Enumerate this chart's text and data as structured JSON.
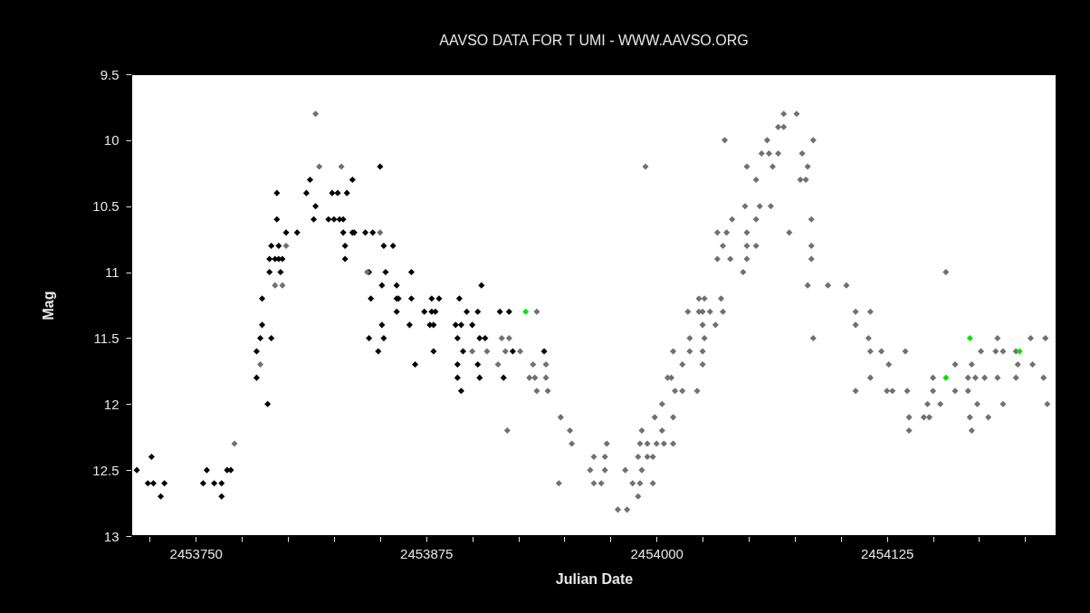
{
  "chart_data": {
    "type": "scatter",
    "title": "AAVSO DATA FOR T UMI - WWW.AAVSO.ORG",
    "xlabel": "Julian Date",
    "ylabel": "Mag",
    "xlim": [
      2453715,
      2454217
    ],
    "ylim": [
      13,
      9.5
    ],
    "xticks": [
      {
        "value": 2453725,
        "label": null
      },
      2453750,
      {
        "value": 2453775,
        "label": null
      },
      {
        "value": 2453800,
        "label": null
      },
      {
        "value": 2453825,
        "label": null
      },
      {
        "value": 2453850,
        "label": null
      },
      2453875,
      {
        "value": 2453900,
        "label": null
      },
      {
        "value": 2453925,
        "label": null
      },
      {
        "value": 2453950,
        "label": null
      },
      {
        "value": 2453975,
        "label": null
      },
      2454000,
      {
        "value": 2454025,
        "label": null
      },
      {
        "value": 2454050,
        "label": null
      },
      {
        "value": 2454075,
        "label": null
      },
      {
        "value": 2454100,
        "label": null
      },
      2454125,
      {
        "value": 2454150,
        "label": null
      },
      {
        "value": 2454175,
        "label": null
      },
      {
        "value": 2454200,
        "label": null
      }
    ],
    "yticks": [
      9.5,
      10,
      10.5,
      11,
      11.5,
      12,
      12.5,
      13
    ],
    "grid": false,
    "marker": "diamond",
    "series": [
      {
        "color": "#000000",
        "x": [
          2453718,
          2453726,
          2453724,
          2453727,
          2453733,
          2453731,
          2453754,
          2453756,
          2453760,
          2453764,
          2453764,
          2453767,
          2453769,
          2453783,
          2453783,
          2453785,
          2453786,
          2453786,
          2453789,
          2453791,
          2453790,
          2453796,
          2453790,
          2453793,
          2453795,
          2453797,
          2453791,
          2453795,
          2453799,
          2453805,
          2453794,
          2453794,
          2453810,
          2453812,
          2453815,
          2453814,
          2453822,
          2453825,
          2453828,
          2453830,
          2453824,
          2453827,
          2453832,
          2453830,
          2453835,
          2453831,
          2453831,
          2453835,
          2453850,
          2453836,
          2453842,
          2453846,
          2453852,
          2453857,
          2453844,
          2453853,
          2453867,
          2453851,
          2453859,
          2453905,
          2453845,
          2453859,
          2453860,
          2453867,
          2453878,
          2453882,
          2453893,
          2453859,
          2453874,
          2453878,
          2453880,
          2453897,
          2453903,
          2453915,
          2453920,
          2453851,
          2453866,
          2453877,
          2453879,
          2453891,
          2453894,
          2453900,
          2453844,
          2453852,
          2453892,
          2453904,
          2453907,
          2453849,
          2453879,
          2453895,
          2453922,
          2453939,
          2453869,
          2453892,
          2453903,
          2453892,
          2453904,
          2453917,
          2453894
        ],
        "values": [
          12.5,
          12.4,
          12.6,
          12.6,
          12.6,
          12.7,
          12.6,
          12.5,
          12.6,
          12.6,
          12.7,
          12.5,
          12.5,
          11.8,
          11.6,
          11.5,
          11.4,
          11.2,
          12.0,
          11.5,
          11.0,
          11.0,
          10.9,
          10.9,
          10.9,
          10.9,
          10.8,
          10.8,
          10.7,
          10.7,
          10.6,
          10.4,
          10.4,
          10.3,
          10.5,
          10.6,
          10.6,
          10.6,
          10.6,
          10.6,
          10.4,
          10.4,
          10.4,
          10.7,
          10.7,
          10.8,
          10.9,
          10.3,
          10.2,
          10.7,
          10.7,
          10.7,
          10.8,
          10.8,
          11.0,
          11.0,
          11.0,
          11.1,
          11.1,
          11.1,
          11.2,
          11.2,
          11.2,
          11.2,
          11.2,
          11.2,
          11.2,
          11.3,
          11.3,
          11.3,
          11.3,
          11.3,
          11.3,
          11.3,
          11.3,
          11.4,
          11.4,
          11.4,
          11.4,
          11.4,
          11.4,
          11.4,
          11.5,
          11.5,
          11.5,
          11.5,
          11.5,
          11.6,
          11.6,
          11.6,
          11.6,
          11.6,
          11.7,
          11.7,
          11.7,
          11.8,
          11.8,
          11.8,
          11.9
        ]
      },
      {
        "color": "#707070",
        "x": [
          2453771,
          2453785,
          2453793,
          2453797,
          2453799,
          2453815,
          2453817,
          2453829,
          2453850,
          2453843,
          2453935,
          2453916,
          2453920,
          2453900,
          2453908,
          2453918,
          2453926,
          2453914,
          2453933,
          2453940,
          2453931,
          2453934,
          2453940,
          2453935,
          2453941,
          2453948,
          2453953,
          2453919,
          2453954,
          2453947,
          2453973,
          2453966,
          2453972,
          2453964,
          2453972,
          2453983,
          2453992,
          2453966,
          2453970,
          2453987,
          2453991,
          2453998,
          2453990,
          2453979,
          2453984,
          2453990,
          2453995,
          2453998,
          2453992,
          2453991,
          2453995,
          2454000,
          2454004,
          2454009,
          2454003,
          2453999,
          2454009,
          2454003,
          2454006,
          2454008,
          2454010,
          2454014,
          2454022,
          2454014,
          2454025,
          2454009,
          2454018,
          2454025,
          2454018,
          2454026,
          2454025,
          2454032,
          2454017,
          2454023,
          2454025,
          2454029,
          2454036,
          2454023,
          2454026,
          2454035,
          2453994,
          2454047,
          2454033,
          2454040,
          2454049,
          2454036,
          2454049,
          2454054,
          2454033,
          2454038,
          2454049,
          2454041,
          2454054,
          2454048,
          2454056,
          2454062,
          2454049,
          2454054,
          2454037,
          2454060,
          2454057,
          2454061,
          2454066,
          2454063,
          2454069,
          2454076,
          2454066,
          2454069,
          2454072,
          2454079,
          2454082,
          2454078,
          2454081,
          2454085,
          2454084,
          2454084,
          2454084,
          2454082,
          2454085,
          2454093,
          2454103,
          2454108,
          2454116,
          2454108,
          2454115,
          2454116,
          2454122,
          2454135,
          2454126,
          2454116,
          2454108,
          2454125,
          2454128,
          2454136,
          2454157,
          2454147,
          2454154,
          2454137,
          2454145,
          2454148,
          2454137,
          2454150,
          2454150,
          2454162,
          2454171,
          2454162,
          2454169,
          2454169,
          2454173,
          2454178,
          2454185,
          2454195,
          2454210,
          2454174,
          2454188,
          2454212,
          2454170,
          2454180,
          2454171,
          2454185,
          2454203,
          2454211,
          2454176,
          2454184,
          2454188,
          2454195,
          2454196,
          2454204
        ],
        "values": [
          12.3,
          11.7,
          11.1,
          11.1,
          10.8,
          9.8,
          10.2,
          10.2,
          10.7,
          11.0,
          11.3,
          11.5,
          11.5,
          11.6,
          11.6,
          11.6,
          11.6,
          11.7,
          11.7,
          11.7,
          11.8,
          11.8,
          11.8,
          11.9,
          11.9,
          12.1,
          12.2,
          12.2,
          12.3,
          12.6,
          12.3,
          12.4,
          12.4,
          12.5,
          12.5,
          12.5,
          12.5,
          12.6,
          12.6,
          12.6,
          12.6,
          12.6,
          12.7,
          12.8,
          12.8,
          12.4,
          12.4,
          12.4,
          12.2,
          12.3,
          12.3,
          12.3,
          12.3,
          12.3,
          12.2,
          12.1,
          12.1,
          12.0,
          11.8,
          11.8,
          11.9,
          11.9,
          11.9,
          11.7,
          11.7,
          11.6,
          11.6,
          11.6,
          11.5,
          11.5,
          11.4,
          11.4,
          11.3,
          11.3,
          11.3,
          11.3,
          11.3,
          11.2,
          11.2,
          11.2,
          10.2,
          11.0,
          10.9,
          10.9,
          10.9,
          10.8,
          10.8,
          10.8,
          10.7,
          10.7,
          10.7,
          10.6,
          10.6,
          10.5,
          10.5,
          10.5,
          10.2,
          10.3,
          10.0,
          10.0,
          10.1,
          10.1,
          10.1,
          10.2,
          9.8,
          9.8,
          9.9,
          9.9,
          10.7,
          10.1,
          10.2,
          10.3,
          10.3,
          10.0,
          10.6,
          10.8,
          10.9,
          11.1,
          11.5,
          11.1,
          11.1,
          11.3,
          11.3,
          11.4,
          11.5,
          11.6,
          11.6,
          11.6,
          11.7,
          11.8,
          11.9,
          11.9,
          11.9,
          11.9,
          11.0,
          12.0,
          12.0,
          12.1,
          12.1,
          12.1,
          12.2,
          11.9,
          11.8,
          11.7,
          11.7,
          11.9,
          11.9,
          11.8,
          11.8,
          11.8,
          11.8,
          11.8,
          11.8,
          12.0,
          12.0,
          12.0,
          12.1,
          12.1,
          12.2,
          11.5,
          11.5,
          11.5,
          11.6,
          11.6,
          11.6,
          11.6,
          11.7,
          11.7
        ]
      },
      {
        "color": "#00e600",
        "x": [
          2453929,
          2454157,
          2454170,
          2454197
        ],
        "values": [
          11.3,
          11.8,
          11.5,
          11.6
        ]
      }
    ]
  }
}
